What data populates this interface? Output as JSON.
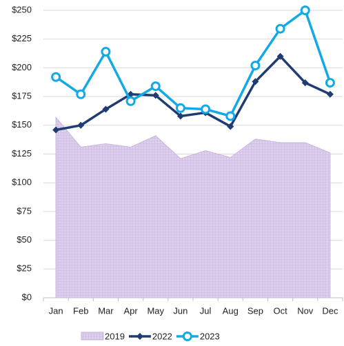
{
  "chart_data": {
    "type": "line",
    "categories": [
      "Jan",
      "Feb",
      "Mar",
      "Apr",
      "May",
      "Jun",
      "Jul",
      "Aug",
      "Sep",
      "Oct",
      "Nov",
      "Dec"
    ],
    "series": [
      {
        "name": "2019",
        "type": "area",
        "color": "#c9b6e0",
        "values": [
          157,
          131,
          134,
          131,
          141,
          121,
          128,
          122,
          138,
          135,
          135,
          126
        ]
      },
      {
        "name": "2022",
        "type": "line",
        "marker": "diamond",
        "color": "#1f3d73",
        "values": [
          146,
          150,
          164,
          177,
          176,
          158,
          161,
          149,
          188,
          210,
          187,
          177
        ]
      },
      {
        "name": "2023",
        "type": "line",
        "marker": "circle",
        "color": "#12a9e6",
        "values": [
          192,
          177,
          214,
          171,
          184,
          165,
          164,
          158,
          202,
          234,
          250,
          187
        ]
      }
    ],
    "ylim": [
      0,
      250
    ],
    "yticks": [
      {
        "value": 0,
        "label": "$0"
      },
      {
        "value": 25,
        "label": "$25"
      },
      {
        "value": 50,
        "label": "$50"
      },
      {
        "value": 75,
        "label": "$75"
      },
      {
        "value": 100,
        "label": "$100"
      },
      {
        "value": 125,
        "label": "$125"
      },
      {
        "value": 150,
        "label": "$150"
      },
      {
        "value": 175,
        "label": "$175"
      },
      {
        "value": 200,
        "label": "$200"
      },
      {
        "value": 225,
        "label": "$225"
      },
      {
        "value": 250,
        "label": "$250"
      }
    ],
    "grid": true
  }
}
